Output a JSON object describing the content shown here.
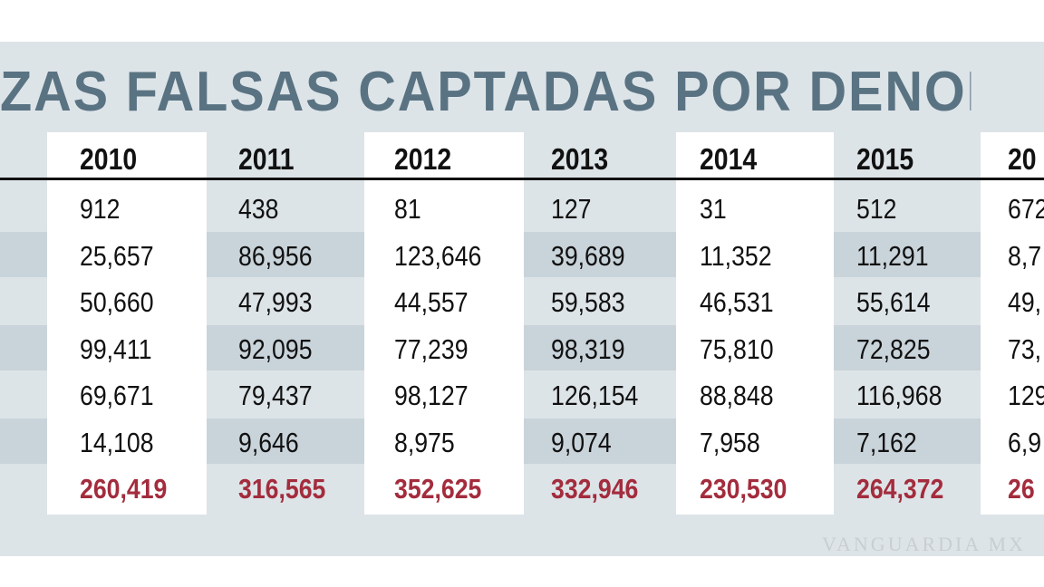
{
  "title": "ZAS FALSAS CAPTADAS POR DENOMINAC",
  "table": {
    "columns": [
      "2010",
      "2011",
      "2012",
      "2013",
      "2014",
      "2015",
      "20"
    ],
    "rows": [
      [
        "912",
        "438",
        "81",
        "127",
        "31",
        "512",
        "672"
      ],
      [
        "25,657",
        "86,956",
        "123,646",
        "39,689",
        "11,352",
        "11,291",
        "8,7"
      ],
      [
        "50,660",
        "47,993",
        "44,557",
        "59,583",
        "46,531",
        "55,614",
        "49,"
      ],
      [
        "99,411",
        "92,095",
        "77,239",
        "98,319",
        "75,810",
        "72,825",
        "73,"
      ],
      [
        "69,671",
        "79,437",
        "98,127",
        "126,154",
        "88,848",
        "116,968",
        "129"
      ],
      [
        "14,108",
        "9,646",
        "8,975",
        "9,074",
        "7,958",
        "7,162",
        "6,9"
      ]
    ],
    "total": [
      "260,419",
      "316,565",
      "352,625",
      "332,946",
      "230,530",
      "264,372",
      "26"
    ]
  },
  "watermark": "VANGUARDIA MX"
}
